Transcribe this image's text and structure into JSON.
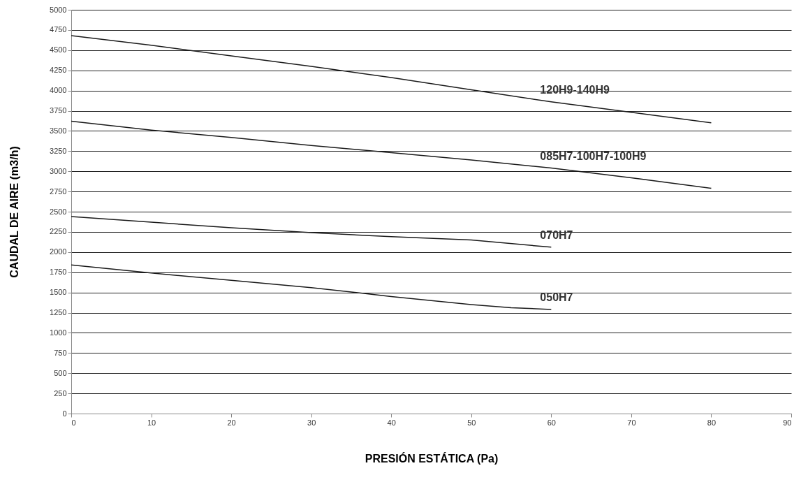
{
  "chart_data": {
    "type": "line",
    "xlabel": "PRESIÓN ESTÁTICA (Pa)",
    "ylabel": "CAUDAL DE AIRE (m3/h)",
    "xlim": [
      0,
      90
    ],
    "xticks": [
      0,
      10,
      20,
      30,
      40,
      50,
      60,
      70,
      80,
      90
    ],
    "ylim": [
      0,
      5000
    ],
    "yticks": [
      0,
      250,
      500,
      750,
      1000,
      1250,
      1500,
      1750,
      2000,
      2250,
      2500,
      2750,
      3000,
      3250,
      3500,
      3750,
      4000,
      4250,
      4500,
      4750,
      5000
    ],
    "grid": "y",
    "marker": "none",
    "line_style": "solid",
    "series": [
      {
        "name": "120H9-140H9",
        "color": "#1a1a1a",
        "x": [
          0,
          10,
          20,
          30,
          40,
          50,
          60,
          70,
          80
        ],
        "values": [
          4680,
          4560,
          4430,
          4300,
          4160,
          4010,
          3860,
          3730,
          3600
        ]
      },
      {
        "name": "085H7-100H7-100H9",
        "color": "#1a1a1a",
        "x": [
          0,
          10,
          20,
          30,
          40,
          50,
          60,
          70,
          80
        ],
        "values": [
          3620,
          3510,
          3420,
          3320,
          3230,
          3140,
          3040,
          2920,
          2790
        ]
      },
      {
        "name": "070H7",
        "color": "#1a1a1a",
        "x": [
          0,
          10,
          20,
          30,
          40,
          50,
          60
        ],
        "values": [
          2440,
          2370,
          2300,
          2240,
          2190,
          2150,
          2060
        ]
      },
      {
        "name": "050H7",
        "color": "#1a1a1a",
        "x": [
          0,
          10,
          20,
          30,
          40,
          50,
          55,
          60
        ],
        "values": [
          1840,
          1740,
          1650,
          1560,
          1450,
          1350,
          1310,
          1290
        ]
      }
    ]
  }
}
